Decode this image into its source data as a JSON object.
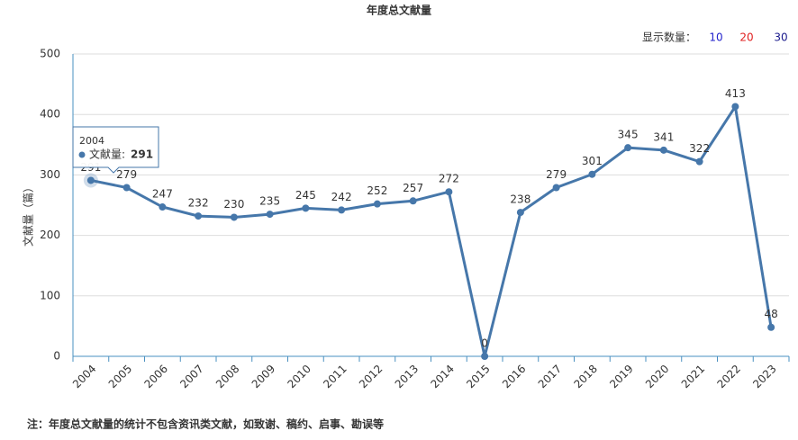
{
  "chart_data": {
    "type": "line",
    "title": "年度总文献量",
    "y_label": "文献量（篇）",
    "categories": [
      "2004",
      "2005",
      "2006",
      "2007",
      "2008",
      "2009",
      "2010",
      "2011",
      "2012",
      "2013",
      "2014",
      "2015",
      "2016",
      "2017",
      "2018",
      "2019",
      "2020",
      "2021",
      "2022",
      "2023"
    ],
    "series": [
      {
        "name": "文献量",
        "color": "#4677aa",
        "values": [
          291,
          279,
          247,
          232,
          230,
          235,
          245,
          242,
          252,
          257,
          272,
          0,
          238,
          279,
          301,
          345,
          341,
          322,
          413,
          48
        ]
      }
    ],
    "ylim": [
      0,
      500
    ],
    "yticks": [
      0,
      100,
      200,
      300,
      400,
      500
    ],
    "grid": true,
    "tooltip": {
      "label": "文献量:"
    },
    "display_count": {
      "label": "显示数量：",
      "options": [
        {
          "text": "10",
          "color": "#2222cc"
        },
        {
          "text": "20",
          "color": "#e02020"
        },
        {
          "text": "30",
          "color": "#1a1a8c"
        }
      ]
    },
    "note": "注：年度总文献量的统计不包含资讯类文献，如致谢、稿约、启事、勘误等"
  }
}
